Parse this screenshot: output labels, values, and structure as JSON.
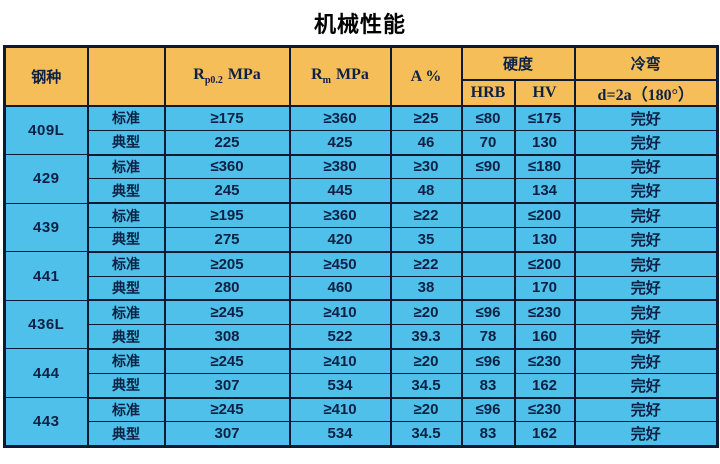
{
  "title": "机械性能",
  "colors": {
    "header_bg": "#F6BE58",
    "row_bg": "#4EC0E9",
    "border": "#0D1A33",
    "text": "#0C2145",
    "title": "#000000",
    "page_bg": "#FFFFFF"
  },
  "table": {
    "headers": {
      "steel": "钢种",
      "row_type": "",
      "rp": {
        "base": "R",
        "sub": "p0.2",
        "unit": "MPa"
      },
      "rm": {
        "base": "R",
        "sub": "m",
        "unit": "MPa"
      },
      "elongation": "A %",
      "hardness": "硬度",
      "hrb": "HRB",
      "hv": "HV",
      "cold_bend": "冷弯",
      "cold_bend_detail": "d=2a（180°）"
    },
    "row_labels": {
      "standard": "标准",
      "typical": "典型"
    },
    "groups": [
      {
        "steel": "409L",
        "rows": [
          {
            "label": "标准",
            "cells": [
              "≥175",
              "≥360",
              "≥25",
              "≤80",
              "≤175",
              "完好"
            ]
          },
          {
            "label": "典型",
            "cells": [
              "225",
              "425",
              "46",
              "70",
              "130",
              "完好"
            ]
          }
        ]
      },
      {
        "steel": "429",
        "rows": [
          {
            "label": "标准",
            "cells": [
              "≤360",
              "≥380",
              "≥30",
              "≤90",
              "≤180",
              "完好"
            ]
          },
          {
            "label": "典型",
            "cells": [
              "245",
              "445",
              "48",
              "",
              "134",
              "完好"
            ]
          }
        ]
      },
      {
        "steel": "439",
        "rows": [
          {
            "label": "标准",
            "cells": [
              "≥195",
              "≥360",
              "≥22",
              "",
              "≤200",
              "完好"
            ]
          },
          {
            "label": "典型",
            "cells": [
              "275",
              "420",
              "35",
              "",
              "130",
              "完好"
            ]
          }
        ]
      },
      {
        "steel": "441",
        "rows": [
          {
            "label": "标准",
            "cells": [
              "≥205",
              "≥450",
              "≥22",
              "",
              "≤200",
              "完好"
            ]
          },
          {
            "label": "典型",
            "cells": [
              "280",
              "460",
              "38",
              "",
              "170",
              "完好"
            ]
          }
        ]
      },
      {
        "steel": "436L",
        "rows": [
          {
            "label": "标准",
            "cells": [
              "≥245",
              "≥410",
              "≥20",
              "≤96",
              "≤230",
              "完好"
            ]
          },
          {
            "label": "典型",
            "cells": [
              "308",
              "522",
              "39.3",
              "78",
              "160",
              "完好"
            ]
          }
        ]
      },
      {
        "steel": "444",
        "rows": [
          {
            "label": "标准",
            "cells": [
              "≥245",
              "≥410",
              "≥20",
              "≤96",
              "≤230",
              "完好"
            ]
          },
          {
            "label": "典型",
            "cells": [
              "307",
              "534",
              "34.5",
              "83",
              "162",
              "完好"
            ]
          }
        ]
      },
      {
        "steel": "443",
        "rows": [
          {
            "label": "标准",
            "cells": [
              "≥245",
              "≥410",
              "≥20",
              "≤96",
              "≤230",
              "完好"
            ]
          },
          {
            "label": "典型",
            "cells": [
              "307",
              "534",
              "34.5",
              "83",
              "162",
              "完好"
            ]
          }
        ]
      }
    ]
  }
}
